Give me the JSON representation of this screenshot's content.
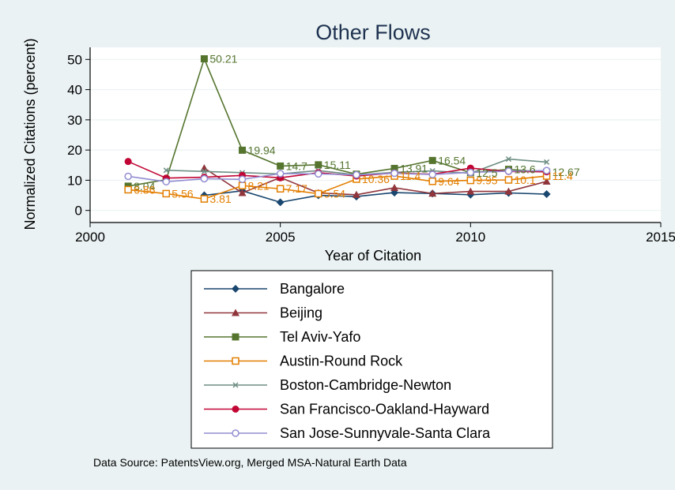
{
  "chart_data": {
    "type": "line",
    "title": "Other Flows",
    "xlabel": "Year of Citation",
    "ylabel": "Normalized Citations (percent)",
    "xlim": [
      2000,
      2015
    ],
    "ylim": [
      -4,
      54
    ],
    "xticks": [
      2000,
      2005,
      2010,
      2015
    ],
    "yticks": [
      0,
      10,
      20,
      30,
      40,
      50
    ],
    "grid": "horizontal",
    "legend_position": "bottom",
    "source": "Data Source: PatentsView.org, Merged MSA-Natural Earth Data",
    "series": [
      {
        "name": "Bangalore",
        "color": "#1a476f",
        "marker": "diamond",
        "x": [
          2003,
          2004,
          2005,
          2006,
          2007,
          2008,
          2009,
          2010,
          2011,
          2012
        ],
        "y": [
          5,
          6.5,
          2.7,
          5.0,
          4.6,
          5.9,
          5.6,
          5.2,
          5.8,
          5.4
        ],
        "labels": []
      },
      {
        "name": "Beijing",
        "color": "#90353b",
        "marker": "triangle",
        "x": [
          2003,
          2004,
          2005,
          2006,
          2007,
          2008,
          2009,
          2010,
          2011,
          2012
        ],
        "y": [
          14.0,
          5.8,
          10.9,
          5.8,
          5.2,
          7.5,
          5.6,
          6.3,
          6.3,
          9.6
        ],
        "labels": []
      },
      {
        "name": "Tel Aviv-Yafo",
        "color": "#55752f",
        "marker": "square",
        "x": [
          2001,
          2002,
          2003,
          2004,
          2005,
          2006,
          2007,
          2008,
          2009,
          2010,
          2011,
          2012
        ],
        "y": [
          8.04,
          10.21,
          50.21,
          19.94,
          14.7,
          15.11,
          12.0,
          13.91,
          16.54,
          12.5,
          13.6,
          12.67
        ],
        "labels": [
          "8.04",
          "",
          "50.21",
          "19.94",
          "14.7",
          "15.11",
          "",
          "13.91",
          "16.54",
          "12.5",
          "13.6",
          "12.67"
        ]
      },
      {
        "name": "Austin-Round Rock",
        "color": "#e37e00",
        "marker": "square-hollow",
        "x": [
          2001,
          2002,
          2003,
          2004,
          2005,
          2006,
          2007,
          2008,
          2009,
          2010,
          2011,
          2012
        ],
        "y": [
          6.86,
          5.56,
          3.81,
          8.21,
          7.17,
          5.54,
          10.36,
          11.4,
          9.64,
          9.95,
          10.1,
          11.4
        ],
        "labels": [
          "6.86",
          "5.56",
          "3.81",
          "8.21",
          "7.17",
          "5.54",
          "10.36",
          "11.4",
          "9.64",
          "9.95",
          "10.1",
          "11.4"
        ]
      },
      {
        "name": "Boston-Cambridge-Newton",
        "color": "#6e8e84",
        "marker": "x",
        "x": [
          2002,
          2003,
          2004,
          2005,
          2006,
          2007,
          2008,
          2009,
          2010,
          2011,
          2012
        ],
        "y": [
          13.3,
          12.9,
          12.5,
          12.1,
          13.2,
          11.8,
          12.6,
          13.1,
          12.3,
          17.0,
          16.0
        ],
        "labels": []
      },
      {
        "name": "San Francisco-Oakland-Hayward",
        "color": "#c10534",
        "marker": "circle",
        "x": [
          2001,
          2002,
          2003,
          2004,
          2005,
          2006,
          2007,
          2008,
          2009,
          2010,
          2011,
          2012
        ],
        "y": [
          16.2,
          10.7,
          11.0,
          11.6,
          10.8,
          12.5,
          11.4,
          12.4,
          12.0,
          14.0,
          12.9,
          12.8
        ],
        "labels": []
      },
      {
        "name": "San Jose-Sunnyvale-Santa Clara",
        "color": "#938dd2",
        "marker": "circle-hollow",
        "x": [
          2001,
          2002,
          2003,
          2004,
          2005,
          2006,
          2007,
          2008,
          2009,
          2010,
          2011,
          2012
        ],
        "y": [
          11.3,
          9.5,
          10.5,
          10.3,
          12.2,
          12.1,
          11.8,
          12.3,
          11.9,
          12.6,
          13.0,
          13.2
        ],
        "labels": []
      }
    ]
  }
}
